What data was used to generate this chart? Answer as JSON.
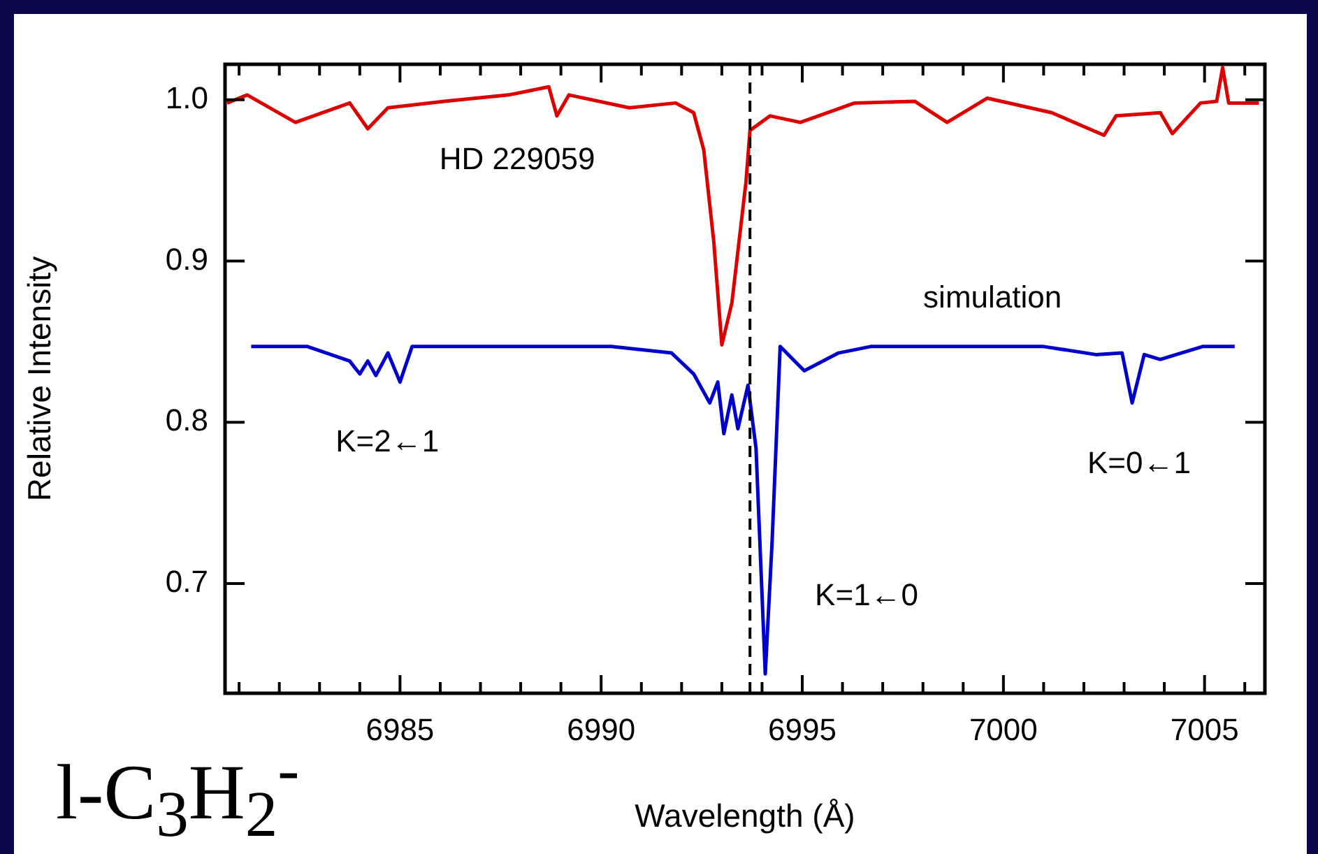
{
  "chart_data": {
    "type": "line",
    "xlabel": "Wavelength (Å)",
    "ylabel": "Relative Intensity",
    "xlim": [
      6980.65,
      7006.5
    ],
    "ylim": [
      0.632,
      1.022
    ],
    "xticks": [
      {
        "value": 6981,
        "label": null
      },
      {
        "value": 6982,
        "label": null
      },
      {
        "value": 6983,
        "label": null
      },
      {
        "value": 6984,
        "label": null
      },
      6985,
      {
        "value": 6986,
        "label": null
      },
      {
        "value": 6987,
        "label": null
      },
      {
        "value": 6988,
        "label": null
      },
      {
        "value": 6989,
        "label": null
      },
      6990,
      {
        "value": 6991,
        "label": null
      },
      {
        "value": 6992,
        "label": null
      },
      {
        "value": 6993,
        "label": null
      },
      {
        "value": 6994,
        "label": null
      },
      6995,
      {
        "value": 6996,
        "label": null
      },
      {
        "value": 6997,
        "label": null
      },
      {
        "value": 6998,
        "label": null
      },
      {
        "value": 6999,
        "label": null
      },
      7000,
      {
        "value": 7001,
        "label": null
      },
      {
        "value": 7002,
        "label": null
      },
      {
        "value": 7003,
        "label": null
      },
      {
        "value": 7004,
        "label": null
      },
      7005,
      {
        "value": 7006,
        "label": null
      }
    ],
    "yticks": [
      0.7,
      0.8,
      0.9,
      {
        "value": 1.0,
        "label": "1.0"
      }
    ],
    "grid": false,
    "legend": false,
    "marker": "none",
    "line_style": "solid",
    "series": [
      {
        "color": "#dd0000",
        "x": [
          6980.7,
          6981.2,
          6982.4,
          6983.75,
          6984.2,
          6984.7,
          6986.1,
          6987.7,
          6988.7,
          6988.9,
          6989.2,
          6990.7,
          6991.85,
          6992.3,
          6992.55,
          6992.8,
          6993.0,
          6993.25,
          6993.6,
          6993.7,
          6994.2,
          6994.95,
          6996.3,
          6997.8,
          6998.6,
          6999.6,
          7001.2,
          7002.5,
          7002.8,
          7003.9,
          7004.2,
          7004.9,
          7005.3,
          7005.45,
          7005.6,
          7006.35
        ],
        "values": [
          0.998,
          1.003,
          0.986,
          0.998,
          0.982,
          0.995,
          0.999,
          1.003,
          1.008,
          0.99,
          1.003,
          0.995,
          0.998,
          0.992,
          0.969,
          0.912,
          0.848,
          0.874,
          0.949,
          0.981,
          0.99,
          0.986,
          0.998,
          0.999,
          0.986,
          1.001,
          0.992,
          0.978,
          0.99,
          0.992,
          0.979,
          0.998,
          0.999,
          1.02,
          0.998,
          0.998
        ]
      },
      {
        "color": "#0000cc",
        "x": [
          6981.3,
          6982.7,
          6983.75,
          6984.0,
          6984.2,
          6984.4,
          6984.7,
          6985.0,
          6985.3,
          6990.25,
          6991.75,
          6992.3,
          6992.7,
          6992.9,
          6993.05,
          6993.25,
          6993.4,
          6993.65,
          6993.85,
          6994.08,
          6994.25,
          6994.45,
          6995.05,
          6995.9,
          6996.7,
          7001.0,
          7002.3,
          7002.95,
          7003.2,
          7003.5,
          7003.9,
          7004.95,
          7005.75
        ],
        "values": [
          0.847,
          0.847,
          0.838,
          0.83,
          0.838,
          0.829,
          0.843,
          0.825,
          0.847,
          0.847,
          0.843,
          0.83,
          0.812,
          0.825,
          0.793,
          0.817,
          0.796,
          0.823,
          0.784,
          0.644,
          0.726,
          0.847,
          0.832,
          0.843,
          0.847,
          0.847,
          0.842,
          0.843,
          0.812,
          0.842,
          0.839,
          0.847,
          0.847
        ]
      }
    ],
    "ref_lines": [
      {
        "axis": "x",
        "value": 6993.7,
        "color": "#000000",
        "line_style": "dashed"
      }
    ],
    "annotations": [
      "HD 229059",
      "simulation",
      "K=2←1",
      "K=1←0",
      "K=0←1",
      "l-C$_{3}$H$_{2}$$^{-}$"
    ]
  }
}
